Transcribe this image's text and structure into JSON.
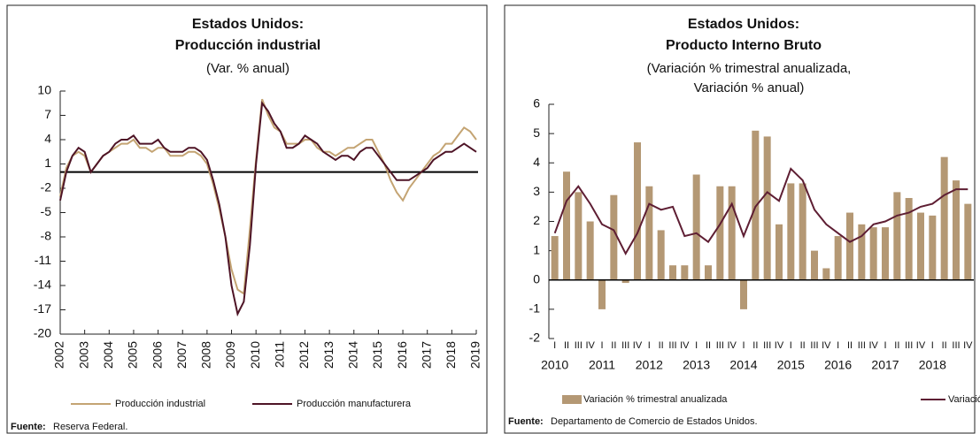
{
  "chart_data": [
    {
      "type": "line",
      "title": [
        "Estados Unidos:",
        "Producción industrial"
      ],
      "subtitle": "(Var. % anual)",
      "x": [
        2002,
        2002.25,
        2002.5,
        2002.75,
        2003,
        2003.25,
        2003.5,
        2003.75,
        2004,
        2004.25,
        2004.5,
        2004.75,
        2005,
        2005.25,
        2005.5,
        2005.75,
        2006,
        2006.25,
        2006.5,
        2006.75,
        2007,
        2007.25,
        2007.5,
        2007.75,
        2008,
        2008.25,
        2008.5,
        2008.75,
        2009,
        2009.25,
        2009.5,
        2009.75,
        2010,
        2010.25,
        2010.5,
        2010.75,
        2011,
        2011.25,
        2011.5,
        2011.75,
        2012,
        2012.25,
        2012.5,
        2012.75,
        2013,
        2013.25,
        2013.5,
        2013.75,
        2014,
        2014.25,
        2014.5,
        2014.75,
        2015,
        2015.25,
        2015.5,
        2015.75,
        2016,
        2016.25,
        2016.5,
        2016.75,
        2017,
        2017.25,
        2017.5,
        2017.75,
        2018,
        2018.25,
        2018.5,
        2018.75,
        2019
      ],
      "series": [
        {
          "name": "Producción industrial",
          "color": "#c4a473",
          "values": [
            -3,
            0.5,
            2,
            2.5,
            2,
            0,
            1,
            2,
            2.5,
            3,
            3.5,
            3.5,
            4,
            3,
            3,
            2.5,
            3,
            3,
            2,
            2,
            2,
            2.5,
            2.5,
            2,
            1,
            -1.5,
            -4.5,
            -8,
            -12,
            -14.5,
            -15,
            -7,
            1.5,
            9,
            7,
            5.5,
            5,
            3.5,
            3.5,
            3.5,
            4,
            4,
            3,
            2.5,
            2.5,
            2,
            2.5,
            3,
            3,
            3.5,
            4,
            4,
            2.5,
            1,
            -1,
            -2.5,
            -3.5,
            -2,
            -1,
            0,
            1,
            2,
            2.5,
            3.5,
            3.5,
            4.5,
            5.5,
            5,
            4
          ]
        },
        {
          "name": "Producción manufacturera",
          "color": "#4e1426",
          "values": [
            -3.5,
            0,
            2,
            3,
            2.5,
            0,
            1,
            2,
            2.5,
            3.5,
            4,
            4,
            4.5,
            3.5,
            3.5,
            3.5,
            4,
            3,
            2.5,
            2.5,
            2.5,
            3,
            3,
            2.5,
            1.5,
            -1,
            -4,
            -8,
            -14,
            -17.5,
            -16,
            -9,
            1,
            8.5,
            7.5,
            6,
            5,
            3,
            3,
            3.5,
            4.5,
            4,
            3.5,
            2.5,
            2,
            1.5,
            2,
            2,
            1.5,
            2.5,
            3,
            3,
            2,
            1,
            0,
            -1,
            -1,
            -1,
            -0.5,
            0,
            0.5,
            1.5,
            2,
            2.5,
            2.5,
            3,
            3.5,
            3,
            2.5
          ]
        }
      ],
      "xlim": [
        2002,
        2019
      ],
      "xticks": [
        2002,
        2003,
        2004,
        2005,
        2006,
        2007,
        2008,
        2009,
        2010,
        2011,
        2012,
        2013,
        2014,
        2015,
        2016,
        2017,
        2018,
        2019
      ],
      "ylim": [
        -20,
        10
      ],
      "yticks": [
        10,
        7,
        4,
        1,
        -2,
        -5,
        -8,
        -11,
        -14,
        -17,
        -20
      ],
      "source": {
        "label": "Fuente:",
        "text": "Reserva Federal."
      }
    },
    {
      "type": "combo",
      "title": [
        "Estados Unidos:",
        "Producto Interno Bruto"
      ],
      "subtitle": [
        "(Variación % trimestral anualizada,",
        "Variación % anual)"
      ],
      "categories": [
        "I",
        "II",
        "III",
        "IV",
        "I",
        "II",
        "III",
        "IV",
        "I",
        "II",
        "III",
        "IV",
        "I",
        "II",
        "III",
        "IV",
        "I",
        "II",
        "III",
        "IV",
        "I",
        "II",
        "III",
        "IV",
        "I",
        "II",
        "III",
        "IV",
        "I",
        "II",
        "III",
        "IV",
        "I",
        "II",
        "III",
        "IV"
      ],
      "years": [
        2010,
        2011,
        2012,
        2013,
        2014,
        2015,
        2016,
        2017,
        2018
      ],
      "series": [
        {
          "name": "Variación % trimestral anualizada",
          "type": "bar",
          "color": "#b49874",
          "values": [
            1.5,
            3.7,
            3.0,
            2.0,
            -1.0,
            2.9,
            -0.1,
            4.7,
            3.2,
            1.7,
            0.5,
            0.5,
            3.6,
            0.5,
            3.2,
            3.2,
            -1.0,
            5.1,
            4.9,
            1.9,
            3.3,
            3.3,
            1.0,
            0.4,
            1.5,
            2.3,
            1.9,
            1.8,
            1.8,
            3.0,
            2.8,
            2.3,
            2.2,
            4.2,
            3.4,
            2.6
          ]
        },
        {
          "name": "Variación % Anual",
          "type": "line",
          "color": "#5e1e33",
          "values": [
            1.6,
            2.7,
            3.2,
            2.6,
            1.9,
            1.7,
            0.9,
            1.6,
            2.6,
            2.4,
            2.5,
            1.5,
            1.6,
            1.3,
            1.9,
            2.6,
            1.5,
            2.5,
            3.0,
            2.7,
            3.8,
            3.4,
            2.4,
            1.9,
            1.6,
            1.3,
            1.5,
            1.9,
            2.0,
            2.2,
            2.3,
            2.5,
            2.6,
            2.9,
            3.1,
            3.1
          ]
        }
      ],
      "ylim": [
        -2,
        6
      ],
      "yticks": [
        6,
        5,
        4,
        3,
        2,
        1,
        0,
        -1,
        -2
      ],
      "source": {
        "label": "Fuente:",
        "text": "Departamento de Comercio de Estados Unidos."
      }
    }
  ]
}
